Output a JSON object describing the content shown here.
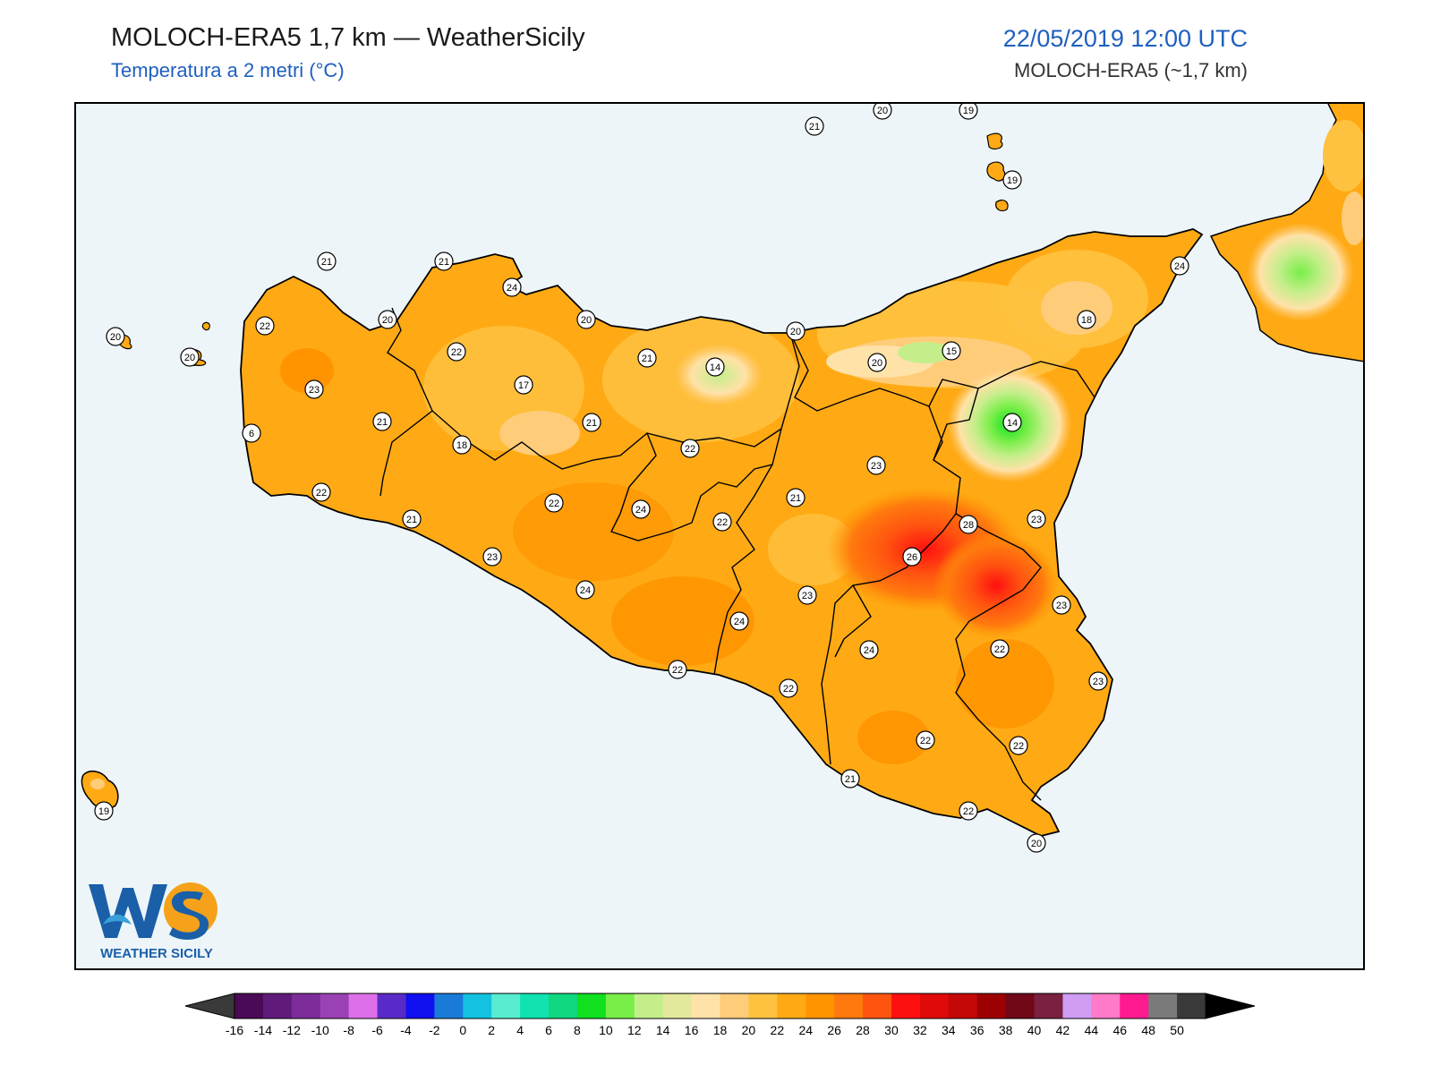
{
  "header": {
    "title": "MOLOCH-ERA5 1,7 km — WeatherSicily",
    "subtitle": "Temperatura a 2 metri (°C)",
    "datetime": "22/05/2019 12:00 UTC",
    "model": "MOLOCH-ERA5 (~1,7 km)"
  },
  "logo": {
    "letters": "WS",
    "name": "WEATHER SICILY"
  },
  "colors": {
    "sea": "#edf5f9",
    "border": "#000000",
    "label_bg": "#ffffff"
  },
  "station_values": [
    {
      "value": "21"
    },
    {
      "value": "20"
    },
    {
      "value": "19"
    },
    {
      "value": "19"
    },
    {
      "value": "20"
    },
    {
      "value": "20"
    },
    {
      "value": "24"
    },
    {
      "value": "18"
    },
    {
      "value": "21"
    },
    {
      "value": "21"
    },
    {
      "value": "24"
    },
    {
      "value": "20"
    },
    {
      "value": "20"
    },
    {
      "value": "22"
    },
    {
      "value": "20"
    },
    {
      "value": "22"
    },
    {
      "value": "23"
    },
    {
      "value": "21"
    },
    {
      "value": "17"
    },
    {
      "value": "21"
    },
    {
      "value": "21"
    },
    {
      "value": "14"
    },
    {
      "value": "20"
    },
    {
      "value": "15"
    },
    {
      "value": "14"
    },
    {
      "value": "6"
    },
    {
      "value": "22"
    },
    {
      "value": "18"
    },
    {
      "value": "22"
    },
    {
      "value": "21"
    },
    {
      "value": "22"
    },
    {
      "value": "21"
    },
    {
      "value": "24"
    },
    {
      "value": "23"
    },
    {
      "value": "24"
    },
    {
      "value": "22"
    },
    {
      "value": "23"
    },
    {
      "value": "28"
    },
    {
      "value": "26"
    },
    {
      "value": "23"
    },
    {
      "value": "24"
    },
    {
      "value": "23"
    },
    {
      "value": "24"
    },
    {
      "value": "23"
    },
    {
      "value": "22"
    },
    {
      "value": "22"
    },
    {
      "value": "22"
    },
    {
      "value": "23"
    },
    {
      "value": "22"
    },
    {
      "value": "22"
    },
    {
      "value": "21"
    },
    {
      "value": "22"
    },
    {
      "value": "20"
    },
    {
      "value": "19"
    }
  ],
  "colorbar": {
    "ticks": [
      "-16",
      "-14",
      "-12",
      "-10",
      "-8",
      "-6",
      "-4",
      "-2",
      "0",
      "2",
      "4",
      "6",
      "8",
      "10",
      "12",
      "14",
      "16",
      "18",
      "20",
      "22",
      "24",
      "26",
      "28",
      "30",
      "32",
      "34",
      "36",
      "38",
      "40",
      "42",
      "44",
      "46",
      "48",
      "50"
    ],
    "colors": [
      "#4a0a55",
      "#5f1a7a",
      "#7b2c98",
      "#9a42b4",
      "#dd70e8",
      "#5a2ac8",
      "#1010f0",
      "#1a7ad8",
      "#12c2e0",
      "#58ecd0",
      "#10e2b0",
      "#10d880",
      "#10e020",
      "#78ee48",
      "#c4ee8a",
      "#e2e89c",
      "#ffe2a8",
      "#ffcc7a",
      "#ffc240",
      "#ffaa14",
      "#ff9400",
      "#ff7a0e",
      "#ff5410",
      "#ff1010",
      "#e00a0a",
      "#c40808",
      "#9c0000",
      "#700818",
      "#7a2040",
      "#d09cf4",
      "#ff7ac8",
      "#ff1a90",
      "#7a7a7a",
      "#3a3a3a"
    ],
    "under_color": "#3a3a3a",
    "over_color": "#000000"
  }
}
